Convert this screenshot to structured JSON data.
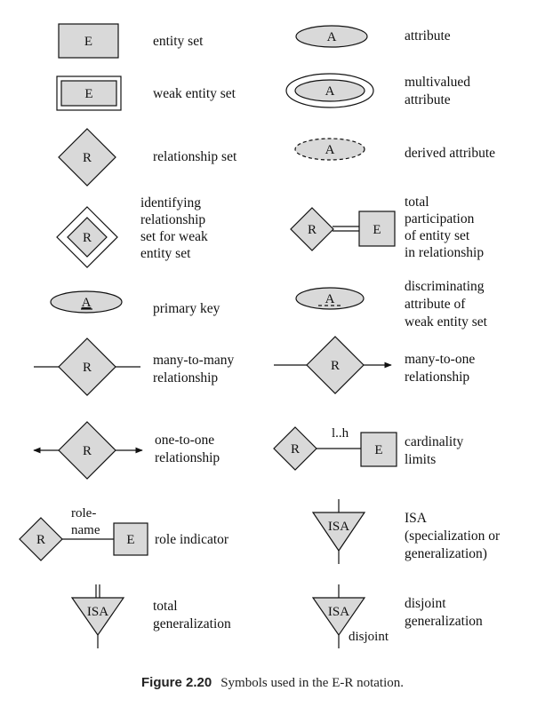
{
  "symbols": {
    "entity_letter": "E",
    "attribute_letter": "A",
    "relationship_letter": "R",
    "isa_text": "ISA",
    "cardinality_text": "l..h",
    "role_name_line1": "role-",
    "role_name_line2": "name",
    "disjoint_text": "disjoint"
  },
  "labels": {
    "entity_set": [
      "entity set"
    ],
    "weak_entity_set": [
      "weak entity set"
    ],
    "relationship_set": [
      "relationship set"
    ],
    "identifying_relationship": [
      "identifying",
      "relationship",
      "set for weak",
      "entity set"
    ],
    "primary_key": [
      "primary key"
    ],
    "many_to_many": [
      "many-to-many",
      "relationship"
    ],
    "one_to_one": [
      "one-to-one",
      "relationship"
    ],
    "role_indicator": [
      "role indicator"
    ],
    "total_generalization": [
      "total",
      "generalization"
    ],
    "attribute": [
      "attribute"
    ],
    "multivalued_attribute": [
      "multivalued",
      "attribute"
    ],
    "derived_attribute": [
      "derived attribute"
    ],
    "total_participation": [
      "total",
      "participation",
      "of entity set",
      "in relationship"
    ],
    "discriminating_attribute": [
      "discriminating",
      "attribute of",
      "weak entity set"
    ],
    "many_to_one": [
      "many-to-one",
      "relationship"
    ],
    "cardinality_limits": [
      "cardinality",
      "limits"
    ],
    "isa": [
      "ISA",
      "(specialization or",
      "generalization)"
    ],
    "disjoint_generalization": [
      "disjoint",
      "generalization"
    ]
  },
  "caption": {
    "figure": "Figure 2.20",
    "text": "Symbols used in the E-R notation."
  }
}
